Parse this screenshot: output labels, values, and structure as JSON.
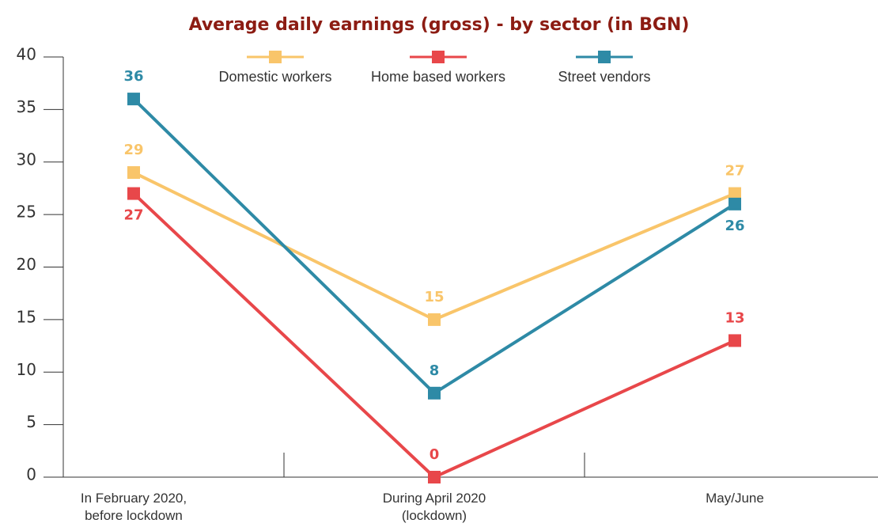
{
  "chart_data": {
    "type": "line",
    "title": "Average daily earnings (gross) - by sector (in BGN)",
    "categories": [
      "In February 2020, before lockdown",
      "During April 2020 (lockdown)",
      "May/June"
    ],
    "series": [
      {
        "name": "Domestic workers",
        "color": "#f9c56a",
        "values": [
          29,
          15,
          27
        ]
      },
      {
        "name": "Home based workers",
        "color": "#e8474a",
        "values": [
          27,
          0,
          13
        ]
      },
      {
        "name": "Street vendors",
        "color": "#2e8aa6",
        "values": [
          36,
          8,
          26
        ]
      }
    ],
    "ylim": [
      0,
      40
    ],
    "yticks": [
      0,
      5,
      10,
      15,
      20,
      25,
      30,
      35,
      40
    ],
    "legend": "top",
    "grid": false
  }
}
